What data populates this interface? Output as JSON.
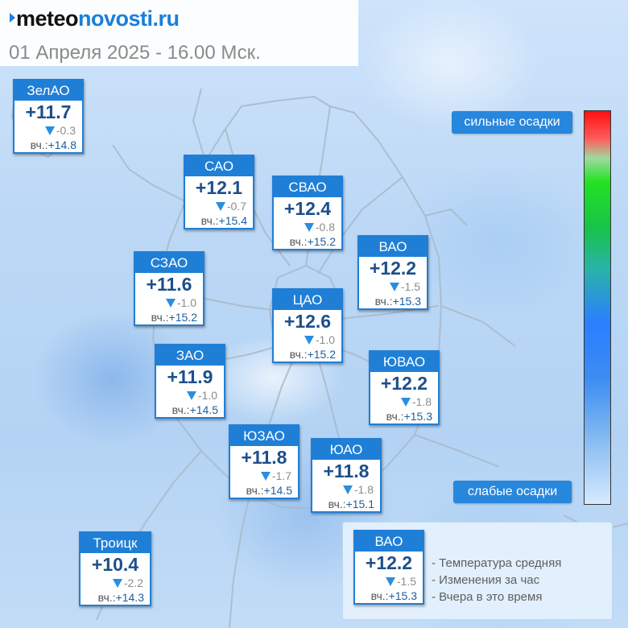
{
  "header": {
    "logo_part1": "meteo",
    "logo_part2": "novosti.ru",
    "date": "01 Апреля 2025 - 16.00 Мск."
  },
  "districts": [
    {
      "id": "zelao",
      "name": "ЗелАО",
      "temp": "+11.7",
      "change": "-0.3",
      "yest_label": "вч.:",
      "yest": "+14.8"
    },
    {
      "id": "sao",
      "name": "САО",
      "temp": "+12.1",
      "change": "-0.7",
      "yest_label": "вч.:",
      "yest": "+15.4"
    },
    {
      "id": "svao",
      "name": "СВАО",
      "temp": "+12.4",
      "change": "-0.8",
      "yest_label": "вч.:",
      "yest": "+15.2"
    },
    {
      "id": "vao",
      "name": "ВАО",
      "temp": "+12.2",
      "change": "-1.5",
      "yest_label": "вч.:",
      "yest": "+15.3"
    },
    {
      "id": "szao",
      "name": "СЗАО",
      "temp": "+11.6",
      "change": "-1.0",
      "yest_label": "вч.:",
      "yest": "+15.2"
    },
    {
      "id": "tsao",
      "name": "ЦАО",
      "temp": "+12.6",
      "change": "-1.0",
      "yest_label": "вч.:",
      "yest": "+15.2"
    },
    {
      "id": "zao",
      "name": "ЗАО",
      "temp": "+11.9",
      "change": "-1.0",
      "yest_label": "вч.:",
      "yest": "+14.5"
    },
    {
      "id": "yuvao",
      "name": "ЮВАО",
      "temp": "+12.2",
      "change": "-1.8",
      "yest_label": "вч.:",
      "yest": "+15.3"
    },
    {
      "id": "yuzao",
      "name": "ЮЗАО",
      "temp": "+11.8",
      "change": "-1.7",
      "yest_label": "вч.:",
      "yest": "+14.5"
    },
    {
      "id": "yuao",
      "name": "ЮАО",
      "temp": "+11.8",
      "change": "-1.8",
      "yest_label": "вч.:",
      "yest": "+15.1"
    },
    {
      "id": "troitsk",
      "name": "Троицк",
      "temp": "+10.4",
      "change": "-2.2",
      "yest_label": "вч.:",
      "yest": "+14.3"
    }
  ],
  "precip_scale": {
    "strong_label": "сильные осадки",
    "weak_label": "слабые осадки"
  },
  "legend": {
    "sample": {
      "name": "ВАО",
      "temp": "+12.2",
      "change": "-1.5",
      "yest_label": "вч.:",
      "yest": "+15.3"
    },
    "line_temp": "- Температура средняя",
    "line_change": "- Изменения за час",
    "line_yest": "- Вчера в это время"
  },
  "colors": {
    "card_header": "#1f7fd6",
    "temp_text": "#1d4f8a",
    "change_arrow": "#2a8ee0",
    "logo_accent": "#1b7fd8"
  },
  "icons": {
    "change": "down-triangle-icon",
    "logo_mark": "arrow-right-icon"
  }
}
